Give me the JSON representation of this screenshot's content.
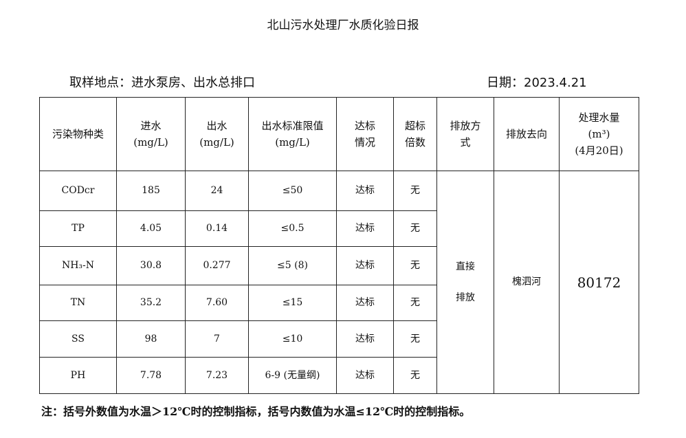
{
  "title": "北山污水处理厂水质化验日报",
  "location": "取样地点：进水泵房、出水总排口",
  "date": "日期：2023.4.21",
  "headers": {
    "pollutant": "污染物种类",
    "inflow": "进水",
    "inflow_unit": "(mg/L)",
    "outflow": "出水",
    "outflow_unit": "(mg/L)",
    "limit": "出水标准限值",
    "limit_unit": "(mg/L)",
    "compliance_1": "达标",
    "compliance_2": "情况",
    "exceed_1": "超标",
    "exceed_2": "倍数",
    "method_1": "排放方",
    "method_2": "式",
    "destination": "排放去向",
    "volume_1": "处理水量",
    "volume_2": "(m³)",
    "volume_3": "(4月20日)"
  },
  "rows": [
    {
      "name": "CODcr",
      "inflow": "185",
      "outflow": "24",
      "limit": "≤50",
      "status": "达标",
      "exceed": "无"
    },
    {
      "name": "TP",
      "inflow": "4.05",
      "outflow": "0.14",
      "limit": "≤0.5",
      "status": "达标",
      "exceed": "无"
    },
    {
      "name": "NH₃-N",
      "inflow": "30.8",
      "outflow": "0.277",
      "limit": "≤5 (8)",
      "status": "达标",
      "exceed": "无"
    },
    {
      "name": "TN",
      "inflow": "35.2",
      "outflow": "7.60",
      "limit": "≤15",
      "status": "达标",
      "exceed": "无"
    },
    {
      "name": "SS",
      "inflow": "98",
      "outflow": "7",
      "limit": "≤10",
      "status": "达标",
      "exceed": "无"
    },
    {
      "name": "PH",
      "inflow": "7.78",
      "outflow": "7.23",
      "limit": "6-9 (无量纲)",
      "status": "达标",
      "exceed": "无"
    }
  ],
  "method_1": "直接",
  "method_2": "排放",
  "destination": "槐泗河",
  "volume": "80172",
  "note": "注：括号外数值为水温＞12℃时的控制指标，括号内数值为水温≤12℃时的控制指标。"
}
